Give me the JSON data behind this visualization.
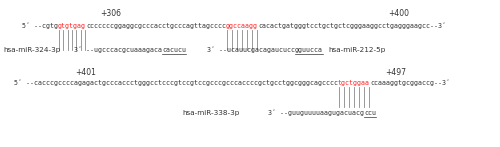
{
  "top_label_left": "+306",
  "top_label_right": "+400",
  "bot_label_left": "+401",
  "bot_label_right": "+497",
  "bg_color": "#ffffff",
  "text_color": "#333333",
  "red_color": "#ff2222",
  "line_color": "#888888"
}
